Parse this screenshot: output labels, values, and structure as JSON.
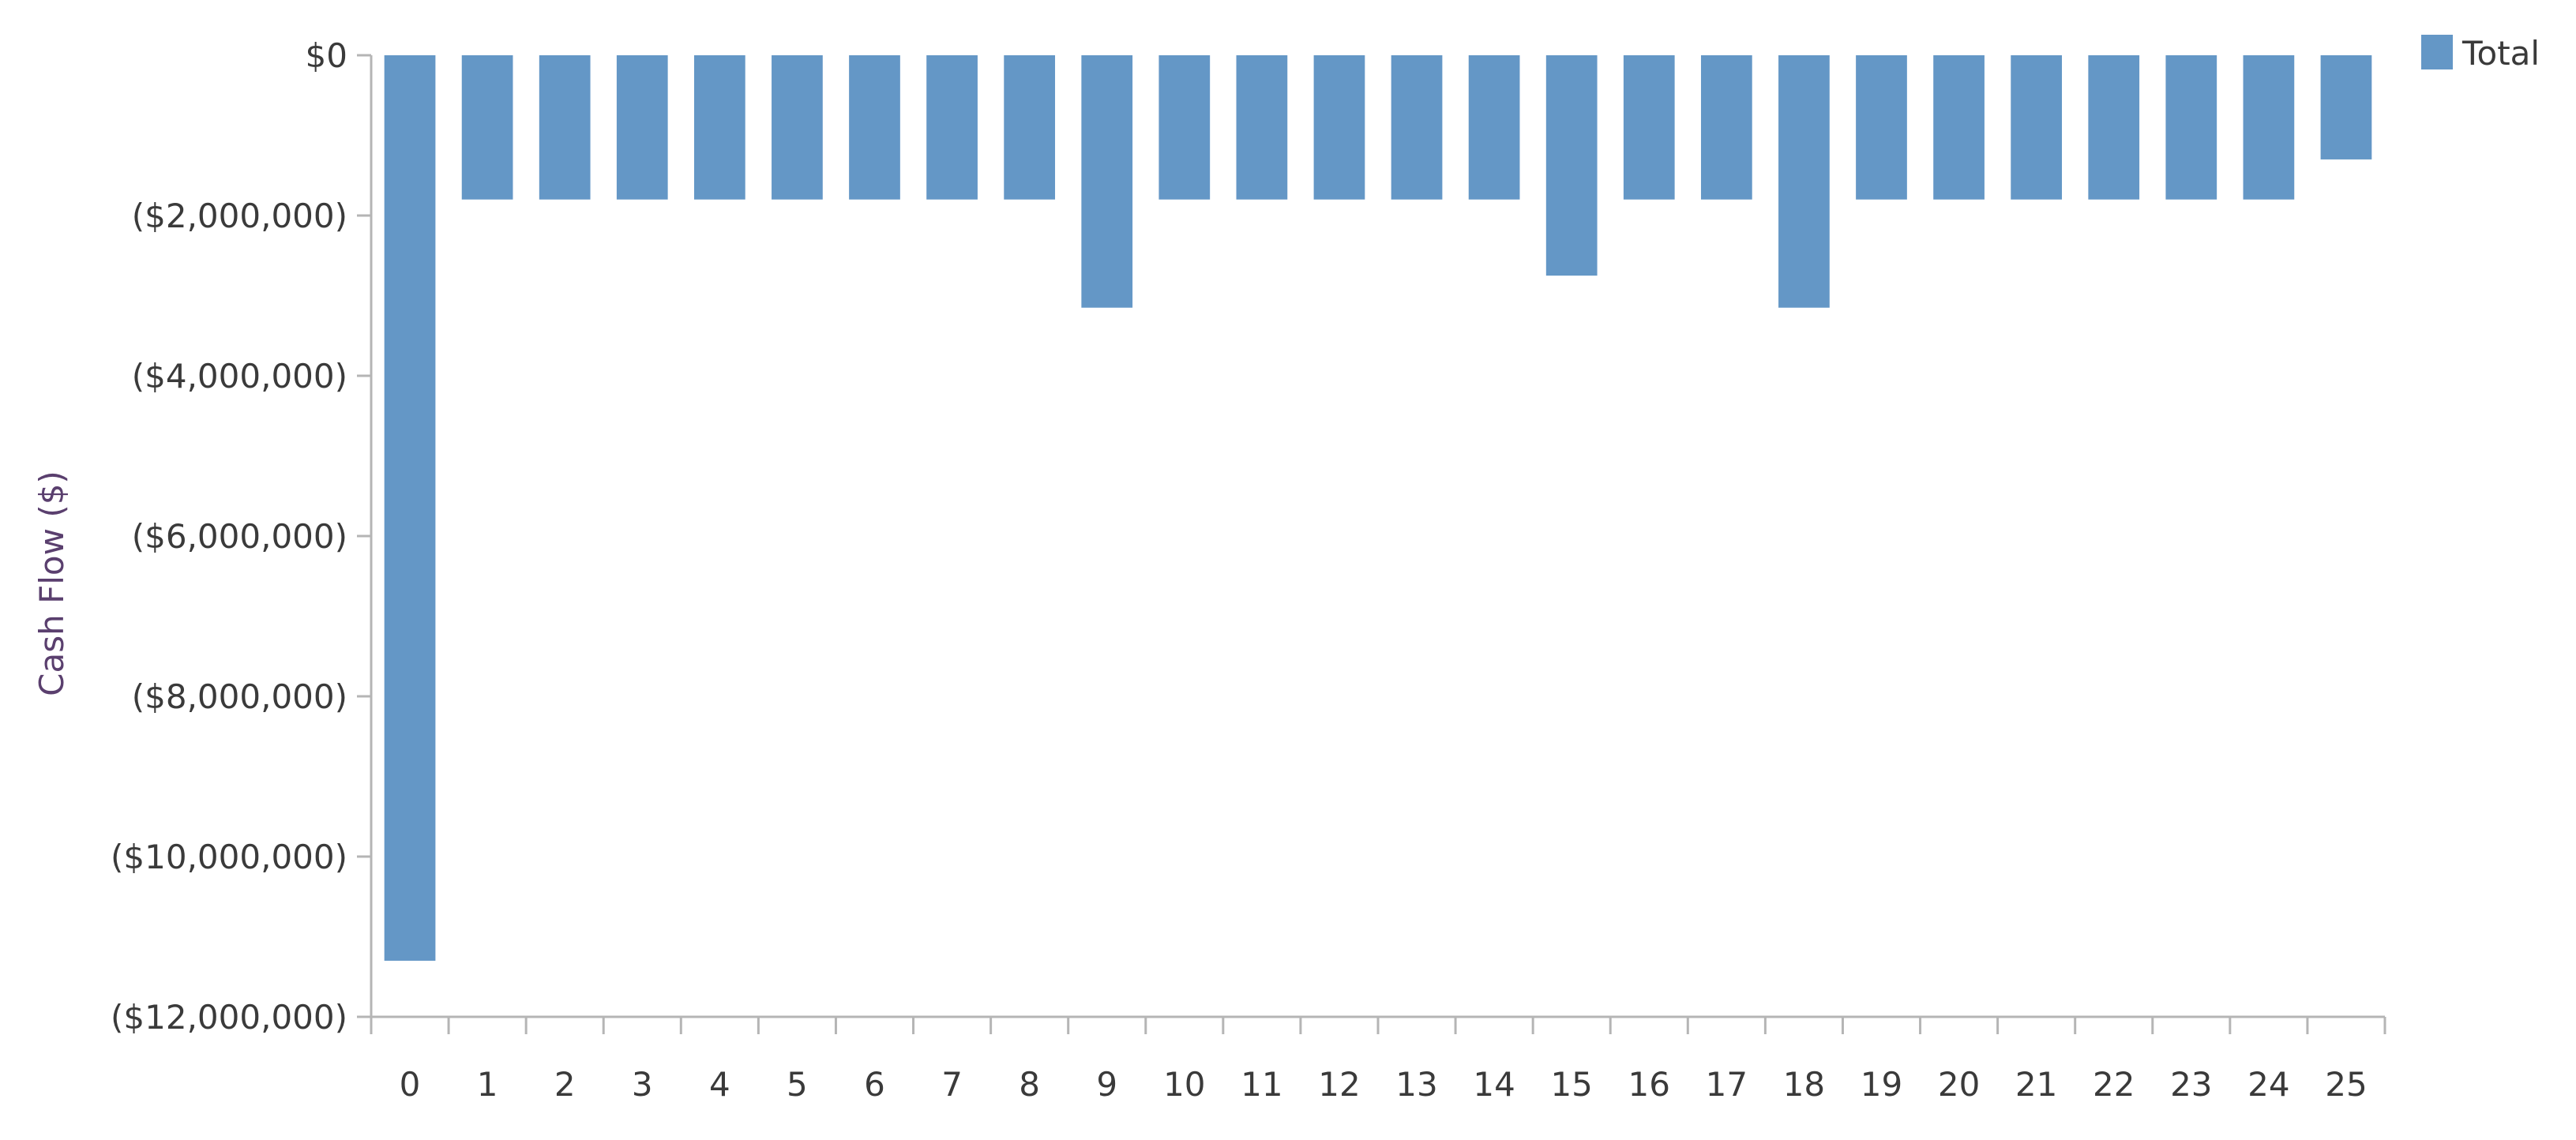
{
  "chart_data": {
    "type": "bar",
    "title": "",
    "xlabel": "",
    "ylabel": "Cash Flow ($)",
    "ylim": [
      -12000000,
      0
    ],
    "yticks": [
      0,
      -2000000,
      -4000000,
      -6000000,
      -8000000,
      -10000000,
      -12000000
    ],
    "ytick_labels": [
      "$0",
      "($2,000,000)",
      "($4,000,000)",
      "($6,000,000)",
      "($8,000,000)",
      "($10,000,000)",
      "($12,000,000)"
    ],
    "categories": [
      "0",
      "1",
      "2",
      "3",
      "4",
      "5",
      "6",
      "7",
      "8",
      "9",
      "10",
      "11",
      "12",
      "13",
      "14",
      "15",
      "16",
      "17",
      "18",
      "19",
      "20",
      "21",
      "22",
      "23",
      "24",
      "25"
    ],
    "series": [
      {
        "name": "Total",
        "color": "#6497c6",
        "values": [
          -11300000,
          -1800000,
          -1800000,
          -1800000,
          -1800000,
          -1800000,
          -1800000,
          -1800000,
          -1800000,
          -3150000,
          -1800000,
          -1800000,
          -1800000,
          -1800000,
          -1800000,
          -2750000,
          -1800000,
          -1800000,
          -3150000,
          -1800000,
          -1800000,
          -1800000,
          -1800000,
          -1800000,
          -1800000,
          -1300000
        ]
      }
    ],
    "grid": false,
    "legend_position": "top-right"
  }
}
